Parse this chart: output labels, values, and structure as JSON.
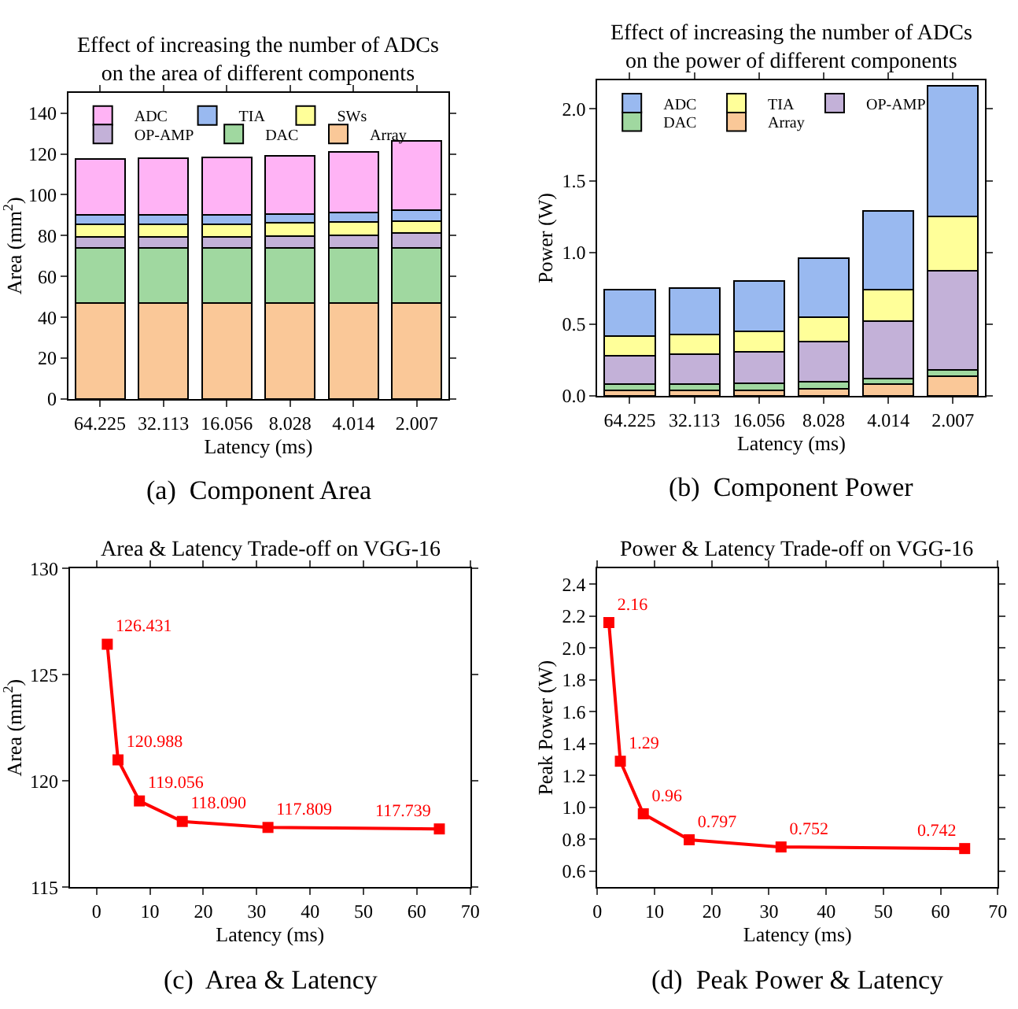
{
  "chart_data": [
    {
      "type": "bar",
      "stacked": true,
      "title": "Effect of increasing the number of ADCs\non the area of different components",
      "xlabel": "Latency (ms)",
      "ylabel": "Area (mm$^{2}$)",
      "categories": [
        "64.225",
        "32.113",
        "16.056",
        "8.028",
        "4.014",
        "2.007"
      ],
      "ylim": [
        0,
        150
      ],
      "yticks": [
        0,
        20,
        40,
        60,
        80,
        100,
        120,
        140
      ],
      "legend": "top left",
      "annotations": [
        "(a)  Component Area"
      ],
      "series": [
        {
          "name": "Array",
          "color": "#fac898",
          "values": [
            47,
            47,
            47,
            47,
            47,
            47
          ]
        },
        {
          "name": "DAC",
          "color": "#a0d8a0",
          "values": [
            27,
            27,
            27,
            27,
            27,
            27
          ]
        },
        {
          "name": "OP-AMP",
          "color": "#c3b1d8",
          "values": [
            5.5,
            5.5,
            5.5,
            5.7,
            6.2,
            7.2
          ]
        },
        {
          "name": "SWs",
          "color": "#ffff99",
          "values": [
            6.2,
            6.2,
            6.2,
            6.5,
            6.5,
            6.0
          ]
        },
        {
          "name": "TIA",
          "color": "#99b9f0",
          "values": [
            4.3,
            4.3,
            4.4,
            4.5,
            4.5,
            5.3
          ]
        },
        {
          "name": "ADC",
          "color": "#ffb3f5",
          "values": [
            27.7,
            27.8,
            28.0,
            28.4,
            29.8,
            33.9
          ]
        }
      ]
    },
    {
      "type": "bar",
      "stacked": true,
      "title": "Effect of increasing the number of ADCs\non the power of different components",
      "xlabel": "Latency (ms)",
      "ylabel": "Power (W)",
      "categories": [
        "64.225",
        "32.113",
        "16.056",
        "8.028",
        "4.014",
        "2.007"
      ],
      "ylim": [
        0,
        2.2
      ],
      "yticks": [
        {
          "value": 0,
          "label": "0.0"
        },
        0.5,
        {
          "value": 1,
          "label": "1.0"
        },
        1.5,
        {
          "value": 2,
          "label": "2.0"
        }
      ],
      "legend": "top left",
      "annotations": [
        "(b)  Component Power"
      ],
      "series": [
        {
          "name": "Array",
          "color": "#fac898",
          "values": [
            0.04,
            0.04,
            0.04,
            0.05,
            0.08,
            0.14
          ]
        },
        {
          "name": "DAC",
          "color": "#a0d8a0",
          "values": [
            0.04,
            0.04,
            0.05,
            0.05,
            0.04,
            0.04
          ]
        },
        {
          "name": "OP-AMP",
          "color": "#c3b1d8",
          "values": [
            0.2,
            0.21,
            0.22,
            0.28,
            0.4,
            0.69
          ]
        },
        {
          "name": "TIA",
          "color": "#ffff99",
          "values": [
            0.14,
            0.14,
            0.14,
            0.17,
            0.22,
            0.38
          ]
        },
        {
          "name": "ADC",
          "color": "#99b9f0",
          "values": [
            0.32,
            0.32,
            0.35,
            0.41,
            0.55,
            0.91
          ]
        }
      ]
    },
    {
      "type": "line",
      "marker": "square",
      "title": "Area & Latency Trade-off on VGG-16",
      "xlabel": "Latency (ms)",
      "ylabel": "Area (mm$^{2}$)",
      "x": [
        2.007,
        4.014,
        8.028,
        16.056,
        32.113,
        64.225
      ],
      "xlim": [
        -5,
        70
      ],
      "xticks": [
        0,
        10,
        20,
        30,
        40,
        50,
        60,
        70
      ],
      "ylim": [
        115,
        130
      ],
      "yticks": [
        115,
        120,
        125,
        130
      ],
      "annotations": [
        "(c)  Area & Latency"
      ],
      "series": [
        {
          "color": "#ff0000",
          "values": [
            126.431,
            120.988,
            119.056,
            118.09,
            117.809,
            117.739
          ],
          "value_labels": [
            "126.431",
            "120.988",
            "119.056",
            "118.090",
            "117.809",
            "117.739"
          ]
        }
      ]
    },
    {
      "type": "line",
      "marker": "square",
      "title": "Power & Latency Trade-off on VGG-16",
      "xlabel": "Latency (ms)",
      "ylabel": "Peak Power (W)",
      "x": [
        2.007,
        4.014,
        8.028,
        16.056,
        32.113,
        64.225
      ],
      "xlim": [
        0,
        70
      ],
      "xticks": [
        0,
        10,
        20,
        30,
        40,
        50,
        60,
        70
      ],
      "ylim": [
        0.5,
        2.5
      ],
      "yticks": [
        0.6,
        0.8,
        {
          "value": 1,
          "label": "1.0"
        },
        1.2,
        1.4,
        1.6,
        1.8,
        {
          "value": 2,
          "label": "2.0"
        },
        2.2,
        2.4
      ],
      "annotations": [
        "(d)  Peak Power & Latency"
      ],
      "series": [
        {
          "color": "#ff0000",
          "values": [
            2.16,
            1.29,
            0.96,
            0.797,
            0.752,
            0.742
          ],
          "value_labels": [
            "2.16",
            "1.29",
            "0.96",
            "0.797",
            "0.752",
            "0.742"
          ]
        }
      ]
    }
  ]
}
